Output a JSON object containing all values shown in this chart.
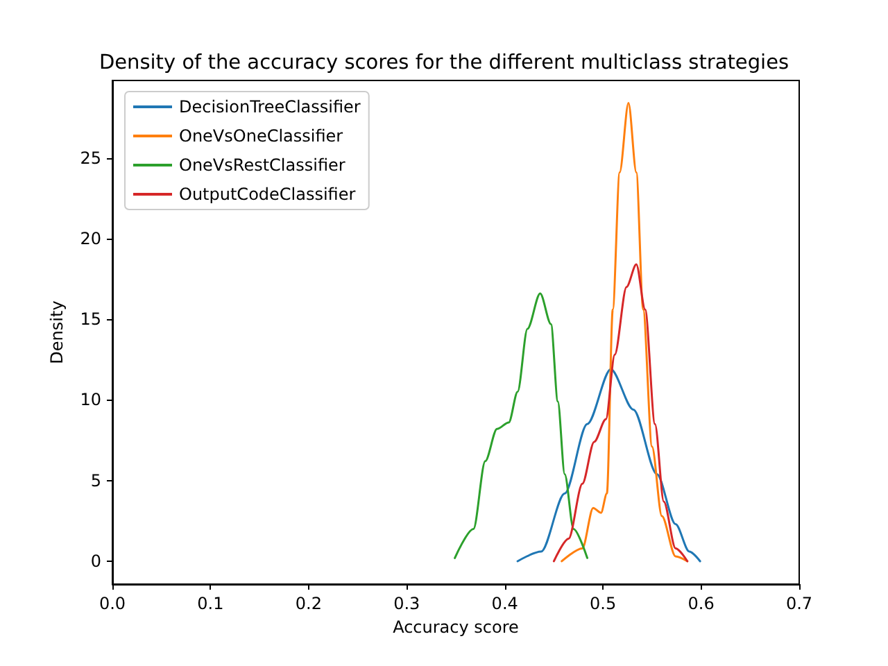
{
  "chart_data": {
    "type": "line",
    "title": "Density of the accuracy scores for the different multiclass strategies",
    "xlabel": "Accuracy score",
    "ylabel": "Density",
    "xlim": [
      0,
      0.7
    ],
    "ylim": [
      -1.42,
      29.8
    ],
    "xticks": [
      {
        "value": 0,
        "label": "0.0"
      },
      0.1,
      0.2,
      0.3,
      0.4,
      0.5,
      0.6,
      0.7
    ],
    "yticks": [
      0,
      5,
      10,
      15,
      20,
      25
    ],
    "grid": false,
    "legend": "top left",
    "marker": "none",
    "line_style": "solid",
    "series": [
      {
        "name": "DecisionTreeClassifier",
        "color": "#1f77b4",
        "x": [
          0.413,
          0.437,
          0.461,
          0.484,
          0.508,
          0.531,
          0.555,
          0.574,
          0.588,
          0.599
        ],
        "values": [
          0,
          0.6,
          4.2,
          8.5,
          11.9,
          9.4,
          5.4,
          2.3,
          0.6,
          0
        ]
      },
      {
        "name": "OneVsOneClassifier",
        "color": "#ff7f0e",
        "x": [
          0.458,
          0.479,
          0.49,
          0.498,
          0.504,
          0.51,
          0.517,
          0.526,
          0.534,
          0.541,
          0.55,
          0.56,
          0.574,
          0.586
        ],
        "values": [
          0,
          0.8,
          3.3,
          3.0,
          4.2,
          15.6,
          24.1,
          28.4,
          24.1,
          15.6,
          7.1,
          2.8,
          0.3,
          0
        ]
      },
      {
        "name": "OneVsRestClassifier",
        "color": "#2ca02c",
        "x": [
          0.349,
          0.368,
          0.38,
          0.392,
          0.404,
          0.413,
          0.423,
          0.436,
          0.447,
          0.454,
          0.461,
          0.47,
          0.484
        ],
        "values": [
          0.2,
          2.0,
          6.2,
          8.2,
          8.6,
          10.5,
          14.4,
          16.6,
          14.7,
          9.9,
          5.4,
          2.0,
          0.2
        ]
      },
      {
        "name": "OutputCodeClassifier",
        "color": "#d62728",
        "x": [
          0.45,
          0.465,
          0.479,
          0.491,
          0.503,
          0.512,
          0.524,
          0.534,
          0.543,
          0.553,
          0.562,
          0.574,
          0.586
        ],
        "values": [
          0,
          1.4,
          4.8,
          7.4,
          8.8,
          12.8,
          17.0,
          18.4,
          15.6,
          8.5,
          3.7,
          0.8,
          0
        ]
      }
    ]
  }
}
